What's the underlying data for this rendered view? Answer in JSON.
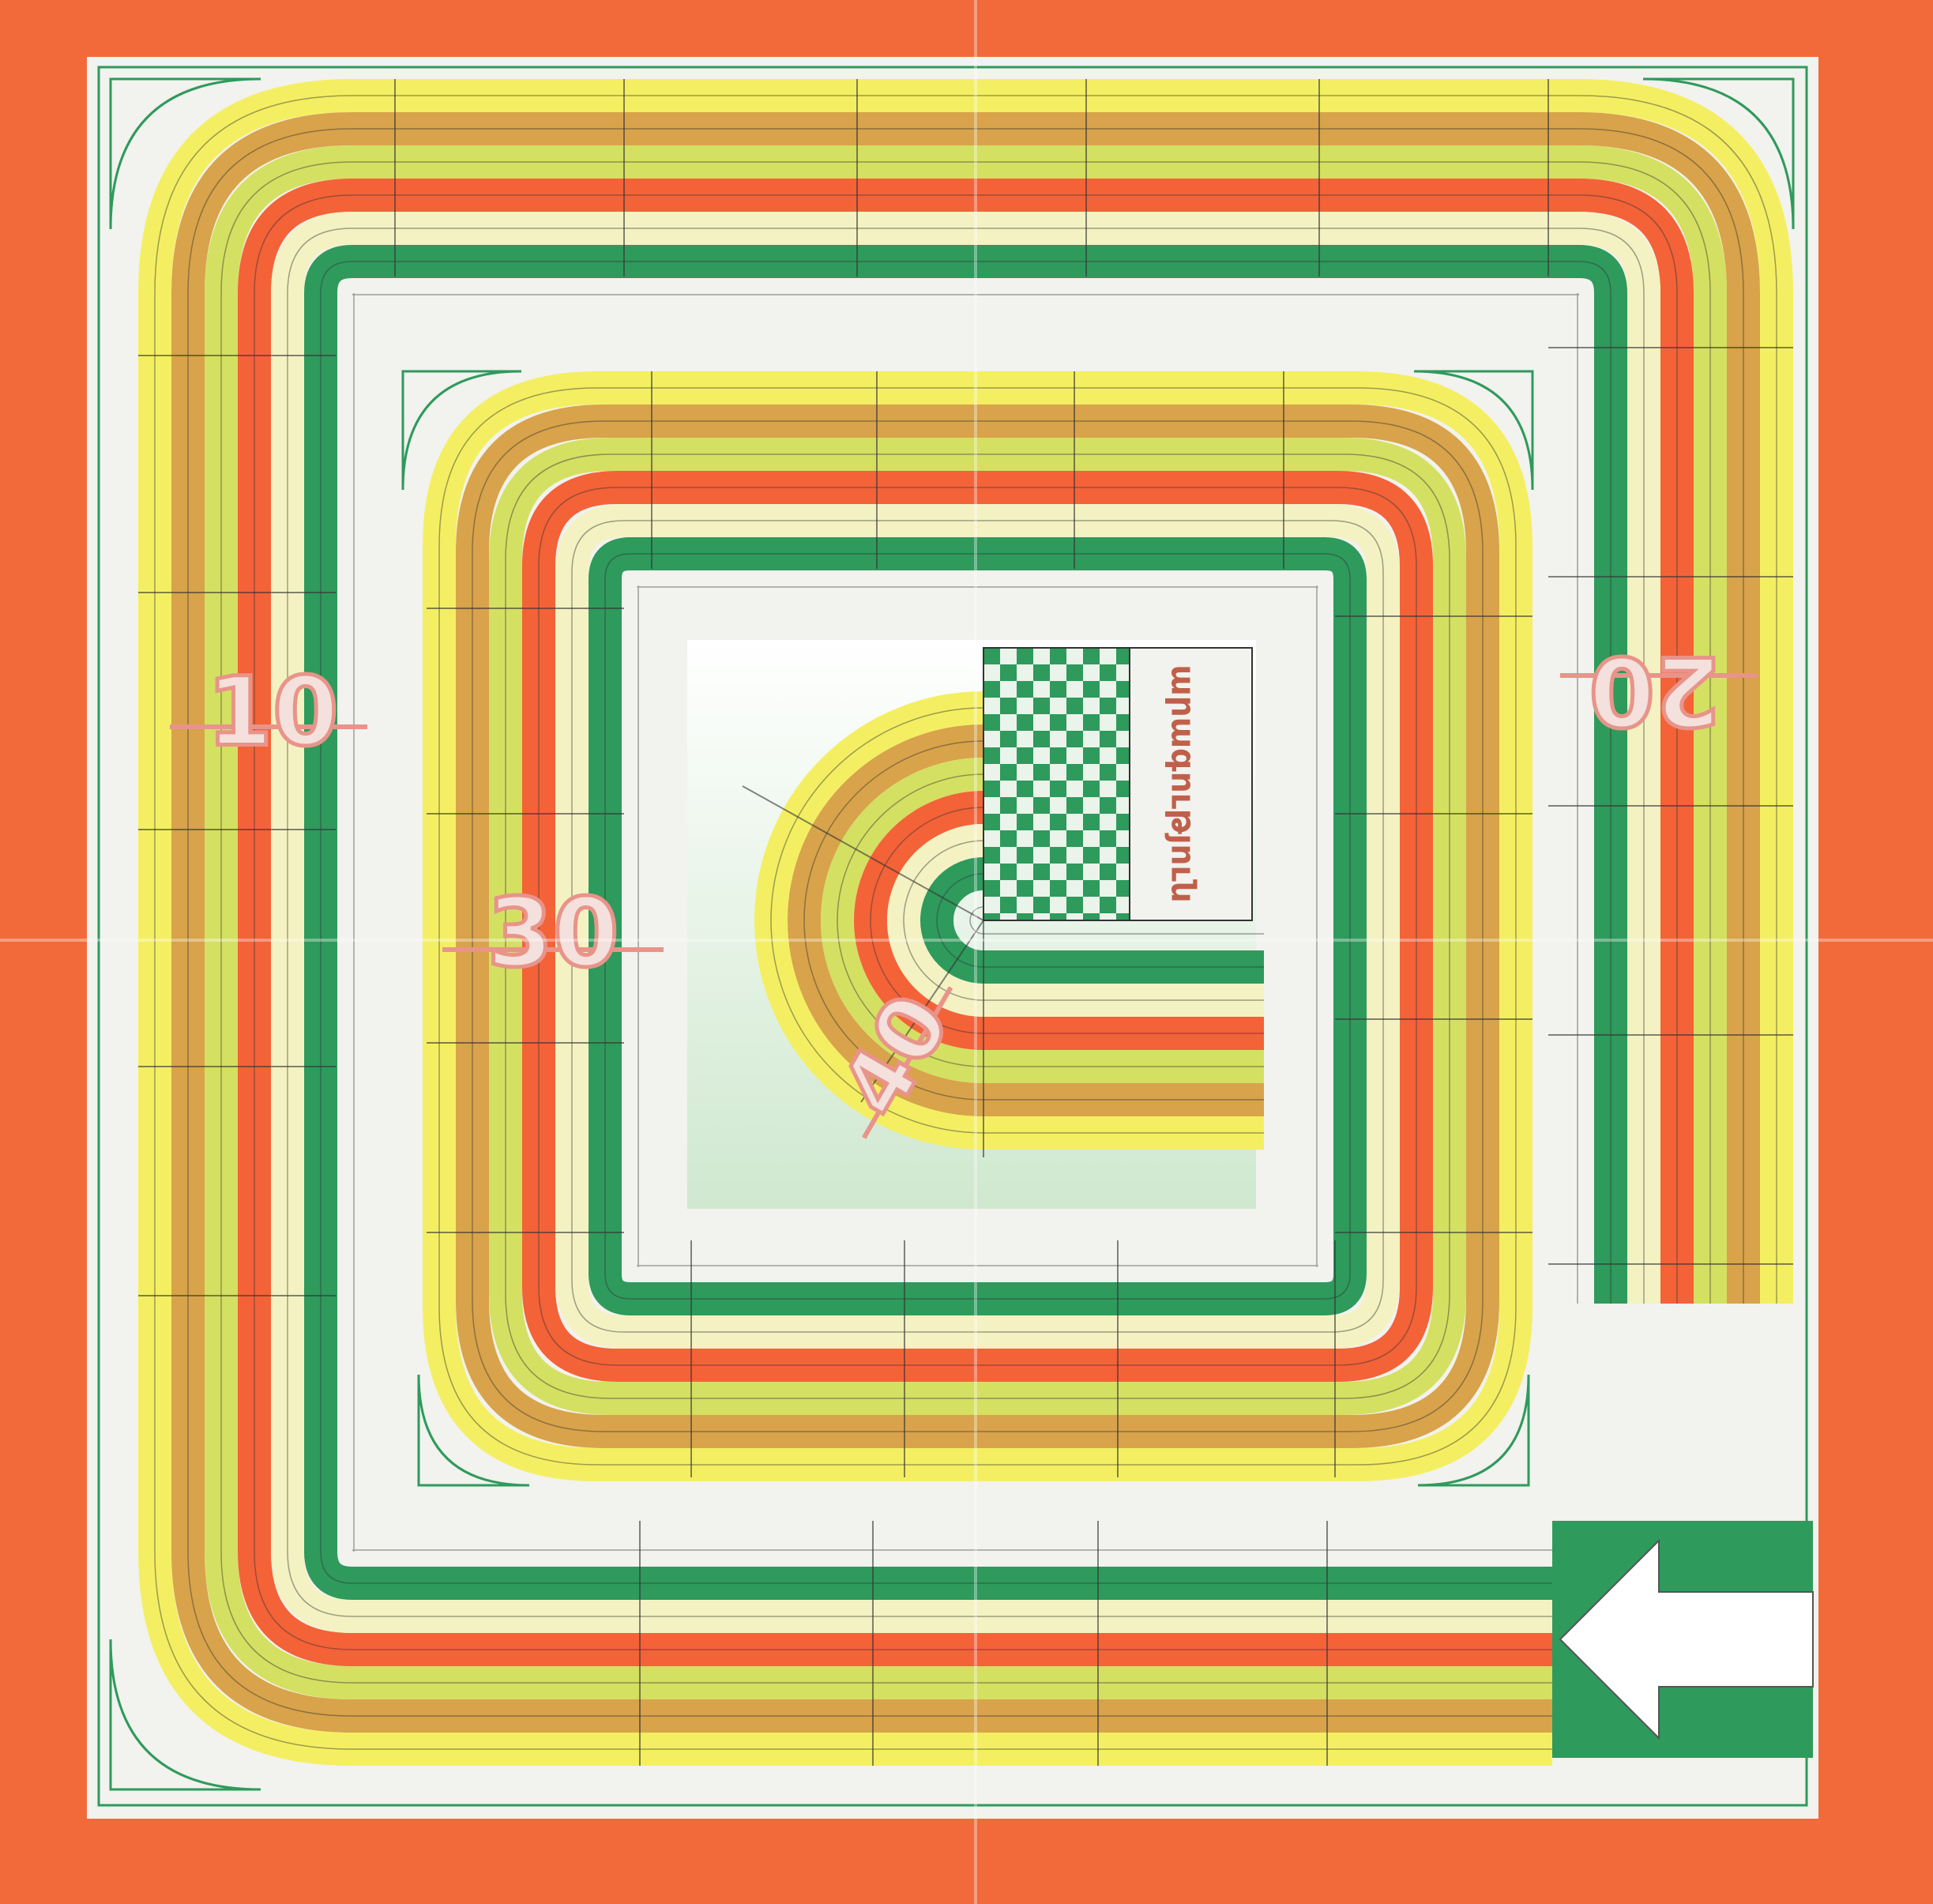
{
  "board": {
    "colors": {
      "border": "#f26a3a",
      "board_bg": "#f2f2ee",
      "lanes": [
        "#f4ef62",
        "#d8a34a",
        "#d4e062",
        "#f46238",
        "#f4f2c2",
        "#2e9a5c"
      ],
      "finish_green": "#2e9a5c",
      "finish_light": "#eaf4ea",
      "number_outline": "#e8948a",
      "arrow_bg": "#2e9a5c",
      "arrow_fg": "#ffffff"
    },
    "lane_count": 6,
    "markers": [
      {
        "text": "10",
        "orientation": "upright"
      },
      {
        "text": "20",
        "orientation": "upside-down"
      },
      {
        "text": "30",
        "orientation": "upright"
      },
      {
        "text": "40",
        "orientation": "rotated"
      }
    ],
    "finish": {
      "label": "արագություն",
      "pattern": "checkered"
    },
    "start": {
      "icon": "arrow-left-icon"
    }
  }
}
